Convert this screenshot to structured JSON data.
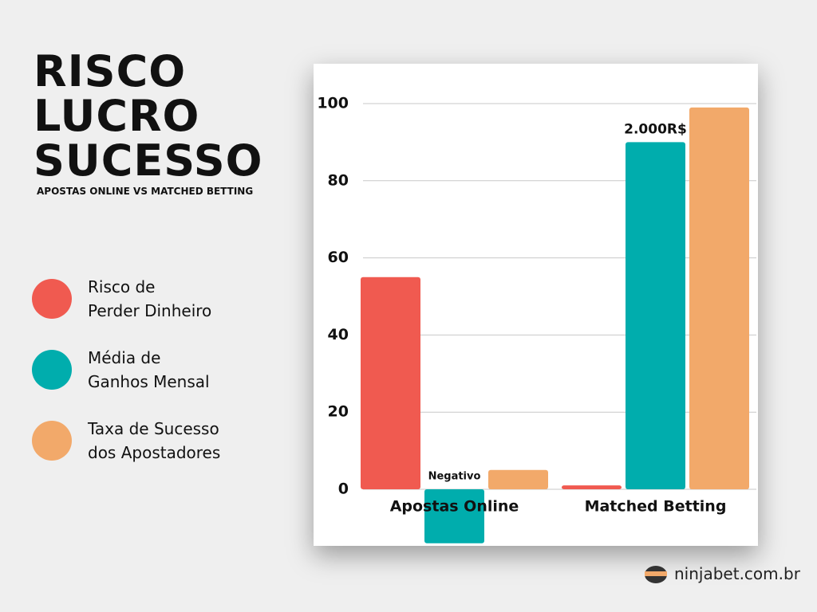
{
  "chart_data": {
    "type": "bar",
    "title": "RISCO\nLUCRO\nSUCESSO",
    "subtitle": "APOSTAS ONLINE VS MATCHED BETTING",
    "categories": [
      "Apostas Online",
      "Matched Betting"
    ],
    "series": [
      {
        "name": "Risco de\nPerder Dinheiro",
        "color": "#f05a50",
        "values": [
          55,
          1
        ]
      },
      {
        "name": "Média de\nGanhos Mensal",
        "color": "#00adad",
        "values": [
          -14,
          90
        ],
        "value_labels": [
          "Negativo",
          "2.000R$"
        ]
      },
      {
        "name": "Taxa de Sucesso\ndos Apostadores",
        "color": "#f2a96a",
        "values": [
          5,
          99
        ]
      }
    ],
    "ylim": [
      -15,
      100
    ],
    "yticks": [
      0,
      20,
      40,
      60,
      80,
      100
    ],
    "grid": true,
    "footer": "ninjabet.com.br"
  }
}
